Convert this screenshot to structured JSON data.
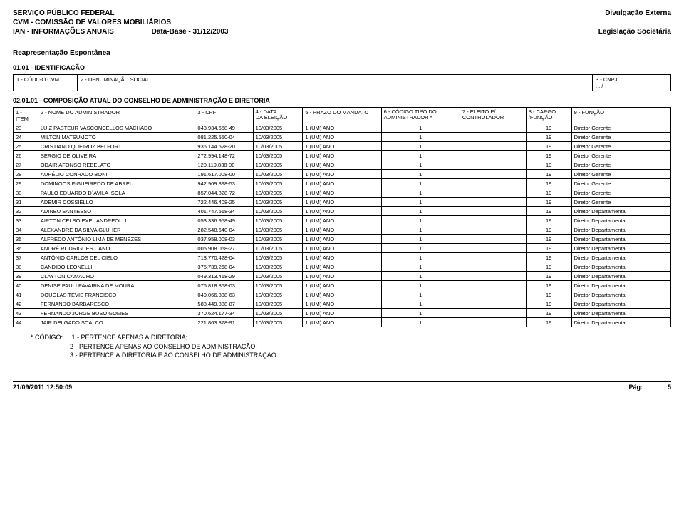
{
  "header": {
    "line1": "SERVIÇO PÚBLICO FEDERAL",
    "line2": "CVM - COMISSÃO DE VALORES MOBILIÁRIOS",
    "line3_left": "IAN - INFORMAÇÕES ANUAIS",
    "line3_center": "Data-Base - 31/12/2003",
    "right1": "Divulgação Externa",
    "right2": "Legislação Societária",
    "reapresentacao": "Reapresentação Espontânea"
  },
  "identificacao": {
    "title": "01.01 - IDENTIFICAÇÃO",
    "col1_label": "1 - CÓDIGO CVM",
    "col1_value": "-",
    "col2_label": "2 - DENOMINAÇÃO SOCIAL",
    "col2_value": "",
    "col3_label": "3 - CNPJ",
    "col3_value": ". . / -"
  },
  "composicao": {
    "title": "02.01.01 - COMPOSIÇÃO ATUAL DO CONSELHO DE ADMINISTRAÇÃO E DIRETORIA",
    "columns": {
      "item": "1 - ITEM",
      "nome": "2 - NOME DO ADMINISTRADOR",
      "cpf": "3 - CPF",
      "data_a": "4 - DATA",
      "data_b": "DA ELEIÇÃO",
      "prazo": "5 - PRAZO DO MANDATO",
      "codigo_a": "6 - CÓDIGO TIPO DO",
      "codigo_b": "ADMINISTRADOR *",
      "eleito_a": "7 - ELEITO P/",
      "eleito_b": "CONTROLADOR",
      "cargo_a": "8 - CARGO",
      "cargo_b": "/FUNÇÃO",
      "funcao": "9 - FUNÇÃO"
    },
    "rows": [
      {
        "item": "23",
        "nome": "LUIZ PASTEUR VASCONCELLOS MACHADO",
        "cpf": "043.934.658-49",
        "data": "10/03/2005",
        "prazo": "1 (UM) ANO",
        "codigo": "1",
        "eleito": "",
        "cargo": "19",
        "funcao": "Diretor Gerente"
      },
      {
        "item": "24",
        "nome": "MILTON MATSUMOTO",
        "cpf": "081.225.550-04",
        "data": "10/03/2005",
        "prazo": "1 (UM) ANO",
        "codigo": "1",
        "eleito": "",
        "cargo": "19",
        "funcao": "Diretor Gerente"
      },
      {
        "item": "25",
        "nome": "CRISTIANO QUEIROZ BELFORT",
        "cpf": "936.144.628-20",
        "data": "10/03/2005",
        "prazo": "1 (UM) ANO",
        "codigo": "1",
        "eleito": "",
        "cargo": "19",
        "funcao": "Diretor Gerente"
      },
      {
        "item": "26",
        "nome": "SÉRGIO DE OLIVEIRA",
        "cpf": "272.994.148-72",
        "data": "10/03/2005",
        "prazo": "1 (UM) ANO",
        "codigo": "1",
        "eleito": "",
        "cargo": "19",
        "funcao": "Diretor Gerente"
      },
      {
        "item": "27",
        "nome": "ODAIR AFONSO REBELATO",
        "cpf": "120.119.838-00",
        "data": "10/03/2005",
        "prazo": "1 (UM) ANO",
        "codigo": "1",
        "eleito": "",
        "cargo": "19",
        "funcao": "Diretor Gerente"
      },
      {
        "item": "28",
        "nome": "AURÉLIO CONRADO BONI",
        "cpf": "191.617.008-00",
        "data": "10/03/2005",
        "prazo": "1 (UM) ANO",
        "codigo": "1",
        "eleito": "",
        "cargo": "19",
        "funcao": "Diretor Gerente"
      },
      {
        "item": "29",
        "nome": "DOMINGOS FIGUEIREDO DE ABREU",
        "cpf": "942.909.898-53",
        "data": "10/03/2005",
        "prazo": "1 (UM) ANO",
        "codigo": "1",
        "eleito": "",
        "cargo": "19",
        "funcao": "Diretor Gerente"
      },
      {
        "item": "30",
        "nome": "PAULO EDUARDO D´AVILA ISOLA",
        "cpf": "857.044.828-72",
        "data": "10/03/2005",
        "prazo": "1 (UM) ANO",
        "codigo": "1",
        "eleito": "",
        "cargo": "19",
        "funcao": "Diretor Gerente"
      },
      {
        "item": "31",
        "nome": "ADEMIR COSSIELLO",
        "cpf": "722.446.408-25",
        "data": "10/03/2005",
        "prazo": "1 (UM) ANO",
        "codigo": "1",
        "eleito": "",
        "cargo": "19",
        "funcao": "Diretor Gerente"
      },
      {
        "item": "32",
        "nome": "ADINEU SANTESSO",
        "cpf": "401.747.518-34",
        "data": "10/03/2005",
        "prazo": "1 (UM) ANO",
        "codigo": "1",
        "eleito": "",
        "cargo": "19",
        "funcao": "Diretor Departamental"
      },
      {
        "item": "33",
        "nome": "AIRTON CELSO EXEL ANDREOLLI",
        "cpf": "053.336.958-49",
        "data": "10/03/2005",
        "prazo": "1 (UM) ANO",
        "codigo": "1",
        "eleito": "",
        "cargo": "19",
        "funcao": "Diretor Departamental"
      },
      {
        "item": "34",
        "nome": "ALEXANDRE DA SILVA GLÜHER",
        "cpf": "282.548.640-04",
        "data": "10/03/2005",
        "prazo": "1 (UM) ANO",
        "codigo": "1",
        "eleito": "",
        "cargo": "19",
        "funcao": "Diretor Departamental"
      },
      {
        "item": "35",
        "nome": "ALFREDO ANTÔNIO LIMA DE MENEZES",
        "cpf": "037.958.008-03",
        "data": "10/03/2005",
        "prazo": "1 (UM) ANO",
        "codigo": "1",
        "eleito": "",
        "cargo": "19",
        "funcao": "Diretor Departamental"
      },
      {
        "item": "36",
        "nome": "ANDRÉ RODRIGUES CANO",
        "cpf": "005.908.058-27",
        "data": "10/03/2005",
        "prazo": "1 (UM) ANO",
        "codigo": "1",
        "eleito": "",
        "cargo": "19",
        "funcao": "Diretor Departamental"
      },
      {
        "item": "37",
        "nome": "ANTÔNIO CARLOS DEL CIELO",
        "cpf": "713.770.428-04",
        "data": "10/03/2005",
        "prazo": "1 (UM) ANO",
        "codigo": "1",
        "eleito": "",
        "cargo": "19",
        "funcao": "Diretor Departamental"
      },
      {
        "item": "38",
        "nome": "CANDIDO LEONELLI",
        "cpf": "375.739.268-04",
        "data": "10/03/2005",
        "prazo": "1 (UM) ANO",
        "codigo": "1",
        "eleito": "",
        "cargo": "19",
        "funcao": "Diretor Departamental"
      },
      {
        "item": "39",
        "nome": "CLAYTON CAMACHO",
        "cpf": "049.313.418-29",
        "data": "10/03/2005",
        "prazo": "1 (UM) ANO",
        "codigo": "1",
        "eleito": "",
        "cargo": "19",
        "funcao": "Diretor Departamental"
      },
      {
        "item": "40",
        "nome": "DENISE PAULI PAVARINA DE MOURA",
        "cpf": "076.818.858-03",
        "data": "10/03/2005",
        "prazo": "1 (UM) ANO",
        "codigo": "1",
        "eleito": "",
        "cargo": "19",
        "funcao": "Diretor Departamental"
      },
      {
        "item": "41",
        "nome": "DOUGLAS TEVIS FRANCISCO",
        "cpf": "040.066.838-63",
        "data": "10/03/2005",
        "prazo": "1 (UM) ANO",
        "codigo": "1",
        "eleito": "",
        "cargo": "19",
        "funcao": "Diretor Departamental"
      },
      {
        "item": "42",
        "nome": "FERNANDO BARBARESCO",
        "cpf": "588.449.888-87",
        "data": "10/03/2005",
        "prazo": "1 (UM) ANO",
        "codigo": "1",
        "eleito": "",
        "cargo": "19",
        "funcao": "Diretor Departamental"
      },
      {
        "item": "43",
        "nome": "FERNANDO JORGE BUSO GOMES",
        "cpf": "370.624.177-34",
        "data": "10/03/2005",
        "prazo": "1 (UM) ANO",
        "codigo": "1",
        "eleito": "",
        "cargo": "19",
        "funcao": "Diretor Departamental"
      },
      {
        "item": "44",
        "nome": "JAIR DELGADO SCALCO",
        "cpf": "221.863.878-91",
        "data": "10/03/2005",
        "prazo": "1 (UM) ANO",
        "codigo": "1",
        "eleito": "",
        "cargo": "19",
        "funcao": "Diretor Departamental"
      }
    ]
  },
  "legend": {
    "label": "* CÓDIGO:",
    "line1": "1 - PERTENCE APENAS À DIRETORIA;",
    "line2": "2 - PERTENCE APENAS AO CONSELHO DE ADMINISTRAÇÃO;",
    "line3": "3 - PERTENCE À DIRETORIA E  AO CONSELHO DE ADMINISTRAÇÃO."
  },
  "footer": {
    "timestamp": "21/09/2011 12:50:09",
    "page_label": "Pág:",
    "page_num": "5"
  }
}
